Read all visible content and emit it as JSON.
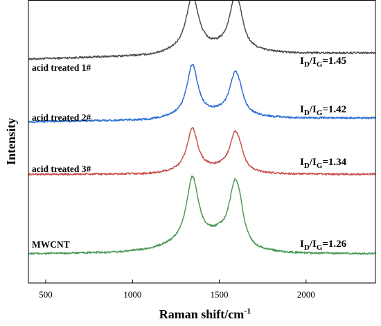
{
  "chart_data": {
    "type": "line",
    "title": "",
    "xlabel": "Raman shift/cm",
    "xlabel_sup": "-1",
    "ylabel": "Intensity",
    "xlim": [
      400,
      2400
    ],
    "xticks": [
      500,
      1000,
      1500,
      2000
    ],
    "xtick_labels": [
      "500",
      "1000",
      "1500",
      "2000"
    ],
    "yticks_shown": false,
    "grid": false,
    "legend": "none",
    "series": [
      {
        "name": "acid treated 1#",
        "color": "#4d4d4d",
        "ratio": {
          "prefix": "I",
          "sub1": "D",
          "slash": "/I",
          "sub2": "G",
          "value": "=1.45"
        },
        "baseline": [
          [
            400,
            0.52
          ],
          [
            1100,
            0.68
          ],
          [
            1250,
            0.82
          ],
          [
            1500,
            0.98
          ],
          [
            1700,
            0.86
          ],
          [
            1900,
            0.8
          ],
          [
            2400,
            0.81
          ]
        ],
        "peaks": [
          {
            "x": 1345,
            "height": 2.65,
            "width": 44
          },
          {
            "x": 1590,
            "height": 2.3,
            "width": 40
          },
          {
            "x": 1620,
            "height": 0.6,
            "width": 28
          }
        ]
      },
      {
        "name": "acid treated 2#",
        "color": "#2b6fd6",
        "ratio": {
          "prefix": "I",
          "sub1": "D",
          "slash": "/I",
          "sub2": "G",
          "value": "=1.42"
        },
        "baseline": [
          [
            400,
            0.25
          ],
          [
            1100,
            0.32
          ],
          [
            1250,
            0.45
          ],
          [
            1500,
            0.62
          ],
          [
            1700,
            0.46
          ],
          [
            1900,
            0.42
          ],
          [
            2400,
            0.42
          ]
        ],
        "peaks": [
          {
            "x": 1345,
            "height": 2.45,
            "width": 38
          },
          {
            "x": 1590,
            "height": 1.85,
            "width": 38
          },
          {
            "x": 1620,
            "height": 0.45,
            "width": 26
          }
        ]
      },
      {
        "name": "acid treated 3#",
        "color": "#c8504a",
        "ratio": {
          "prefix": "I",
          "sub1": "D",
          "slash": "/I",
          "sub2": "G",
          "value": "=1.34"
        },
        "baseline": [
          [
            400,
            0.12
          ],
          [
            1100,
            0.12
          ],
          [
            1250,
            0.2
          ],
          [
            1500,
            0.35
          ],
          [
            1700,
            0.14
          ],
          [
            1900,
            0.12
          ],
          [
            2400,
            0.12
          ]
        ],
        "peaks": [
          {
            "x": 1345,
            "height": 2.05,
            "width": 38
          },
          {
            "x": 1590,
            "height": 1.7,
            "width": 38
          },
          {
            "x": 1620,
            "height": 0.4,
            "width": 26
          }
        ]
      },
      {
        "name": "MWCNT",
        "color": "#4a9a5a",
        "ratio": {
          "prefix": "I",
          "sub1": "D",
          "slash": "/I",
          "sub2": "G",
          "value": "=1.26"
        },
        "baseline": [
          [
            400,
            0.0
          ],
          [
            900,
            0.05
          ],
          [
            1100,
            0.18
          ],
          [
            1250,
            0.4
          ],
          [
            1500,
            0.8
          ],
          [
            1700,
            0.12
          ],
          [
            1900,
            0.02
          ],
          [
            2400,
            0.0
          ]
        ],
        "peaks": [
          {
            "x": 1345,
            "height": 3.1,
            "width": 42
          },
          {
            "x": 1590,
            "height": 2.7,
            "width": 40
          },
          {
            "x": 1620,
            "height": 0.7,
            "width": 26
          }
        ]
      }
    ]
  }
}
